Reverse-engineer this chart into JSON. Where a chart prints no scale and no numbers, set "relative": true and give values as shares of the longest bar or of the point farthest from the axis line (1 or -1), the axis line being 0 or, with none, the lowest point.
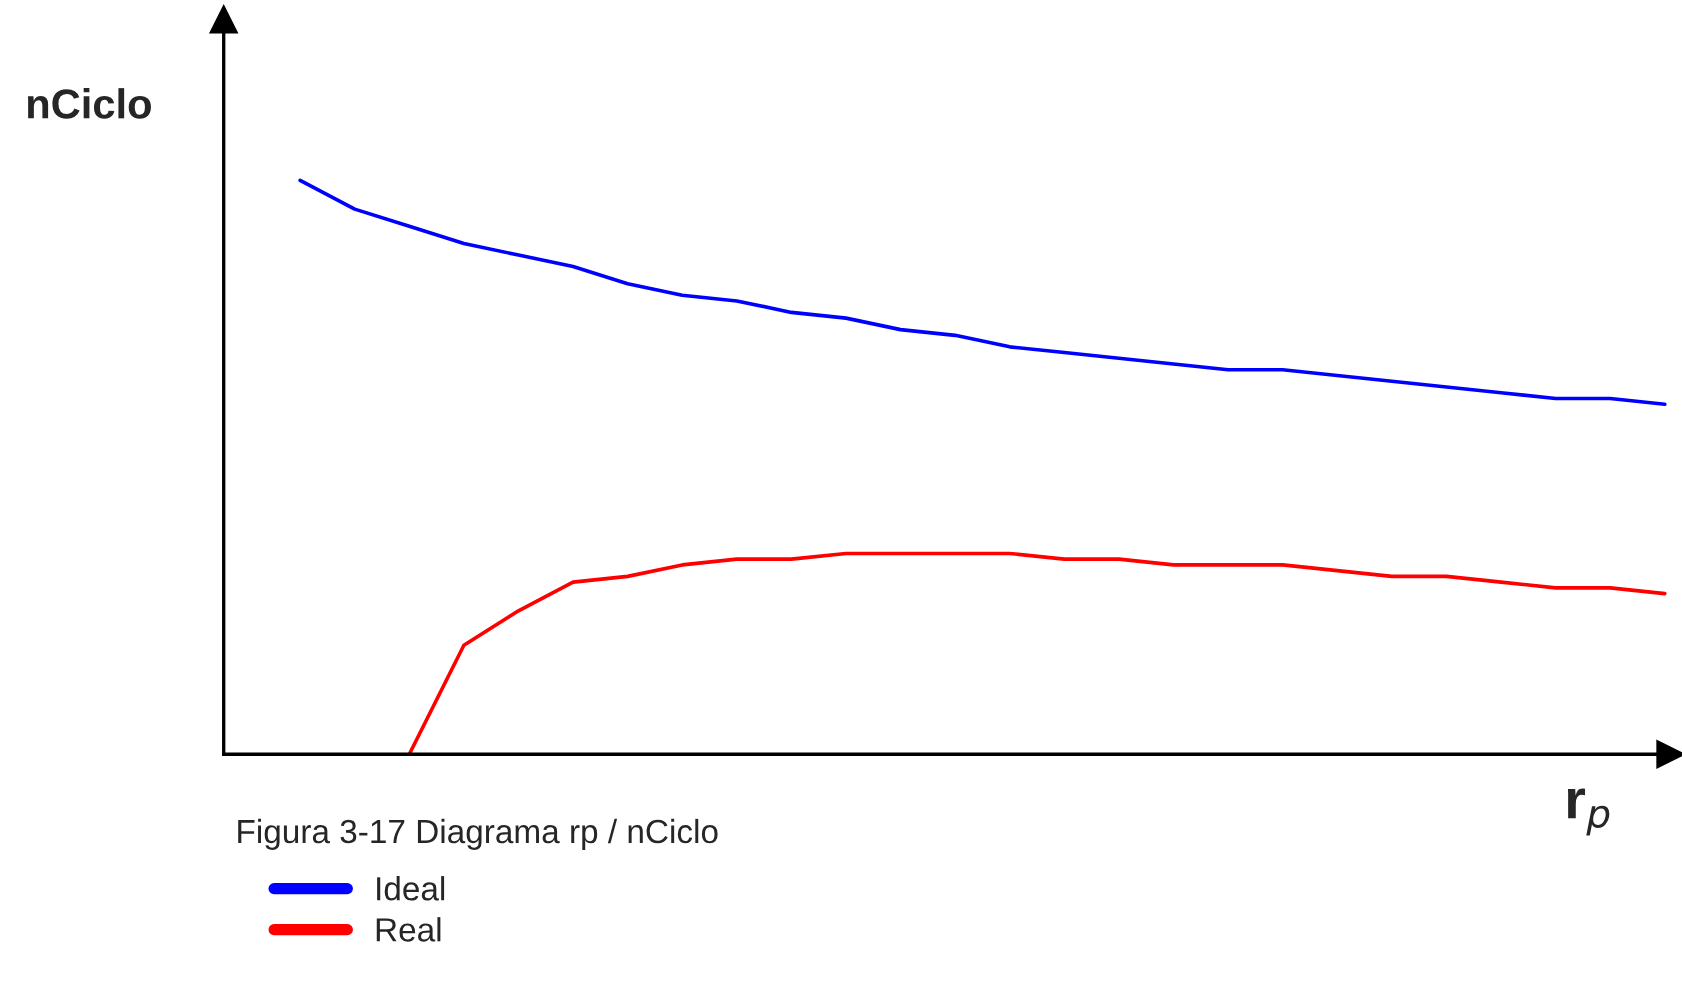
{
  "chart_data": {
    "type": "line",
    "relative": true,
    "ylabel": "nCiclo",
    "xlabel": "r$_{p}$",
    "annotations": [
      "Figura 3-17 Diagrama rp / nCiclo"
    ],
    "categories": [
      null,
      null,
      null,
      null,
      null,
      null,
      null,
      null,
      null,
      null,
      null,
      null,
      null,
      null,
      null,
      null,
      null,
      null,
      null,
      null,
      null,
      null,
      null,
      null,
      null,
      null
    ],
    "series": [
      {
        "name": "Ideal",
        "color": "#0000ff",
        "values": [
          1.0,
          0.95,
          0.92,
          0.89,
          0.87,
          0.85,
          0.82,
          0.8,
          0.79,
          0.77,
          0.76,
          0.74,
          0.73,
          0.71,
          0.7,
          0.69,
          0.68,
          0.67,
          0.67,
          0.66,
          0.65,
          0.64,
          0.63,
          0.62,
          0.62,
          0.61
        ]
      },
      {
        "name": "Real",
        "color": "#ff0000",
        "values": [
          null,
          null,
          0.0,
          0.19,
          0.25,
          0.3,
          0.31,
          0.33,
          0.34,
          0.34,
          0.35,
          0.35,
          0.35,
          0.35,
          0.34,
          0.34,
          0.33,
          0.33,
          0.33,
          0.32,
          0.31,
          0.31,
          0.3,
          0.29,
          0.29,
          0.28
        ]
      }
    ],
    "legend": "bottom left",
    "line_style": "solid"
  }
}
